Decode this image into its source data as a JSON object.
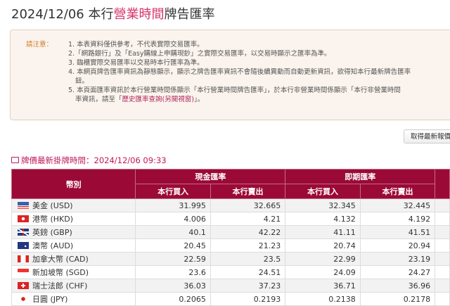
{
  "title": {
    "pre": "2024/12/06 本行",
    "highlight": "營業時間",
    "post": "牌告匯率"
  },
  "notice": {
    "label": "請注意：",
    "items": [
      "1. 本表資料僅供參考，不代表實際交易匯率。",
      "2.「網路銀行」及「Easy購線上申購現鈔」之實際交易匯率，以交易時顯示之匯率為準。",
      "3. 臨櫃實際交易匯率以交易時本行匯率為準。",
      "4. 本網頁牌告匯率資訊為靜態顯示，顯示之牌告匯率資訊不會隨後續異動而自動更新資訊，欲得知本行最新牌告匯率",
      "鈕。",
      "5. 本頁面匯率資訊於本行營業時間係顯示「本行營業時間牌告匯率」，於本行非營業時間係顯示「本行非營業時間",
      "率資訊，請至「"
    ],
    "link": "歷史匯率查詢(另開視窗)",
    "link_suffix": "」。"
  },
  "refresh_button": "取得最新報價",
  "quote_time": "牌價最新掛牌時間：2024/12/06 09:33",
  "table": {
    "currency_header": "幣別",
    "cash_header": "現金匯率",
    "spot_header": "即期匯率",
    "buy": "本行買入",
    "sell": "本行賣出",
    "rows": [
      {
        "flag": "us",
        "name": "美金 (USD)",
        "cash_buy": "31.995",
        "cash_sell": "32.665",
        "spot_buy": "32.345",
        "spot_sell": "32.445"
      },
      {
        "flag": "hk",
        "name": "港幣 (HKD)",
        "cash_buy": "4.006",
        "cash_sell": "4.21",
        "spot_buy": "4.132",
        "spot_sell": "4.192"
      },
      {
        "flag": "gb",
        "name": "英鎊 (GBP)",
        "cash_buy": "40.1",
        "cash_sell": "42.22",
        "spot_buy": "41.11",
        "spot_sell": "41.51"
      },
      {
        "flag": "au",
        "name": "澳幣 (AUD)",
        "cash_buy": "20.45",
        "cash_sell": "21.23",
        "spot_buy": "20.74",
        "spot_sell": "20.94"
      },
      {
        "flag": "ca",
        "name": "加拿大幣 (CAD)",
        "cash_buy": "22.59",
        "cash_sell": "23.5",
        "spot_buy": "22.99",
        "spot_sell": "23.19"
      },
      {
        "flag": "sg",
        "name": "新加坡幣 (SGD)",
        "cash_buy": "23.6",
        "cash_sell": "24.51",
        "spot_buy": "24.09",
        "spot_sell": "24.27"
      },
      {
        "flag": "ch",
        "name": "瑞士法郎 (CHF)",
        "cash_buy": "36.03",
        "cash_sell": "37.23",
        "spot_buy": "36.71",
        "spot_sell": "36.96"
      },
      {
        "flag": "jp",
        "name": "日圓 (JPY)",
        "cash_buy": "0.2065",
        "cash_sell": "0.2193",
        "spot_buy": "0.2138",
        "spot_sell": "0.2178"
      }
    ]
  }
}
